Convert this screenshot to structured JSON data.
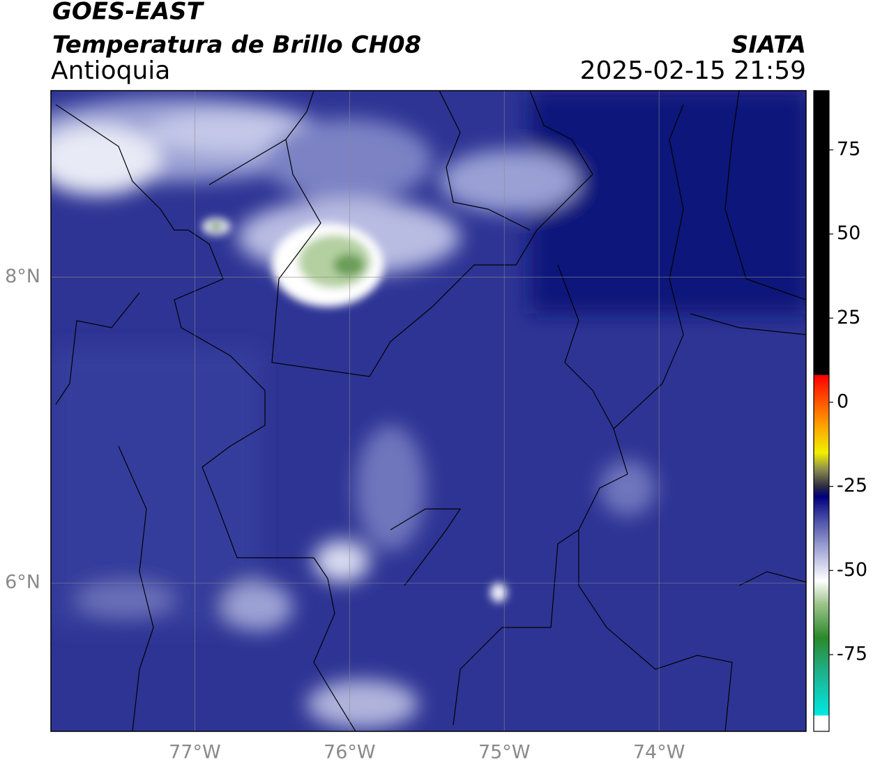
{
  "header": {
    "title": "GOES-EAST",
    "subtitle": "Temperatura de Brillo CH08",
    "region": "Antioquia",
    "source": "SIATA",
    "datetime": "2025-02-15 21:59"
  },
  "map": {
    "lon_range": [
      -77.93,
      -73.05
    ],
    "lat_range": [
      5.03,
      9.22
    ],
    "lon_ticks": [
      {
        "value": -77,
        "label": "77°W"
      },
      {
        "value": -76,
        "label": "76°W"
      },
      {
        "value": -75,
        "label": "75°W"
      },
      {
        "value": -74,
        "label": "74°W"
      }
    ],
    "lat_ticks": [
      {
        "value": 8,
        "label": "8°N"
      },
      {
        "value": 6,
        "label": "6°N"
      }
    ]
  },
  "colorbar": {
    "range": [
      -97.8,
      92.6
    ],
    "ticks": [
      75,
      50,
      25,
      0,
      -25,
      -50,
      -75
    ],
    "stops": [
      {
        "value": -97.8,
        "color": "#ffffff"
      },
      {
        "value": -93.2,
        "color": "#ffffff"
      },
      {
        "value": -93,
        "color": "#00e8e0"
      },
      {
        "value": -80,
        "color": "#1fb08a"
      },
      {
        "value": -70,
        "color": "#2a8a2a"
      },
      {
        "value": -60,
        "color": "#9cc48a"
      },
      {
        "value": -53,
        "color": "#ffffff"
      },
      {
        "value": -45,
        "color": "#b0b4dc"
      },
      {
        "value": -35,
        "color": "#4a50a8"
      },
      {
        "value": -28,
        "color": "#00007a"
      },
      {
        "value": -25,
        "color": "#2c2c40"
      },
      {
        "value": -20,
        "color": "#8c8c50"
      },
      {
        "value": -15,
        "color": "#f0f000"
      },
      {
        "value": -6,
        "color": "#ff9800"
      },
      {
        "value": 8,
        "color": "#ff0000"
      },
      {
        "value": 8.2,
        "color": "#000000"
      },
      {
        "value": 92.6,
        "color": "#000000"
      }
    ]
  }
}
